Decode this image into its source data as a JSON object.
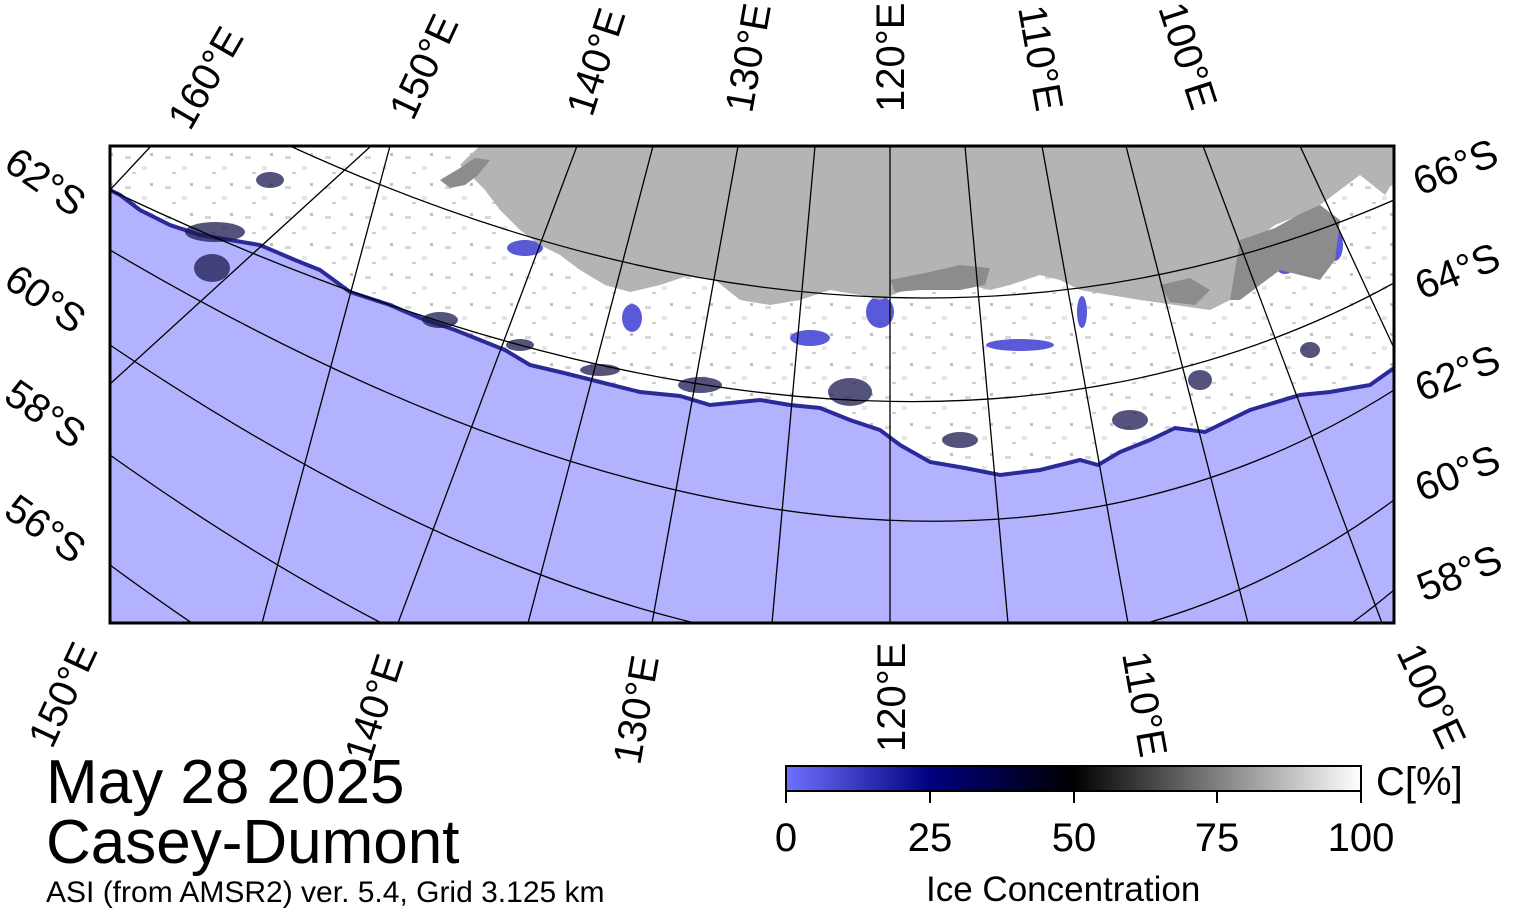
{
  "title": {
    "date": "May 28 2025",
    "region": "Casey-Dumont",
    "product": "ASI (from AMSR2) ver. 5.4,  Grid 3.125 km"
  },
  "map": {
    "top_longitude_labels": [
      "160°E",
      "150°E",
      "140°E",
      "130°E",
      "120°E",
      "110°E",
      "100°E"
    ],
    "bottom_longitude_labels": [
      "150°E",
      "140°E",
      "130°E",
      "120°E",
      "110°E",
      "100°E"
    ],
    "left_latitude_labels": [
      "62°S",
      "60°S",
      "58°S",
      "56°S"
    ],
    "right_latitude_labels": [
      "66°S",
      "64°S",
      "62°S",
      "60°S",
      "58°S"
    ],
    "colors": {
      "ocean": "#b2b2ff",
      "land": "#b4b4b4",
      "ice_shelf": "#8c8c8c",
      "sea_ice": "#ffffff",
      "frame": "#000000"
    }
  },
  "colorbar": {
    "title": "Ice Concentration",
    "unit": "C[%]",
    "ticks": [
      "0",
      "25",
      "50",
      "75",
      "100"
    ],
    "stops": [
      "#7070ff",
      "#000080",
      "#000000",
      "#808080",
      "#ffffff"
    ]
  }
}
